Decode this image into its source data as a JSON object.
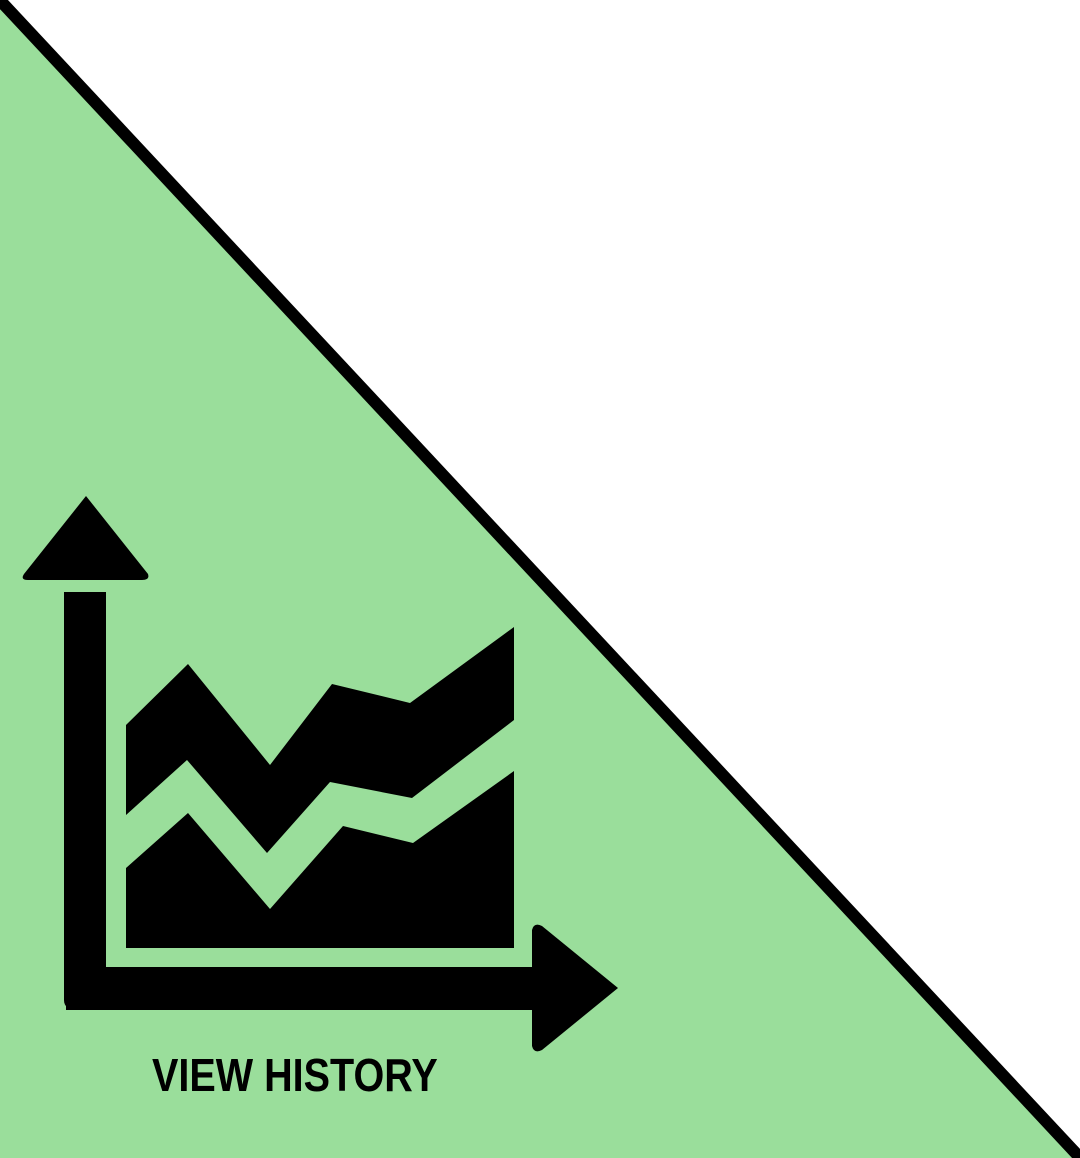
{
  "button": {
    "label": "VIEW HISTORY",
    "icon": "area-chart-icon",
    "fill_color": "#9ade9b",
    "border_color": "#000000",
    "background_color": "#ffffff"
  }
}
